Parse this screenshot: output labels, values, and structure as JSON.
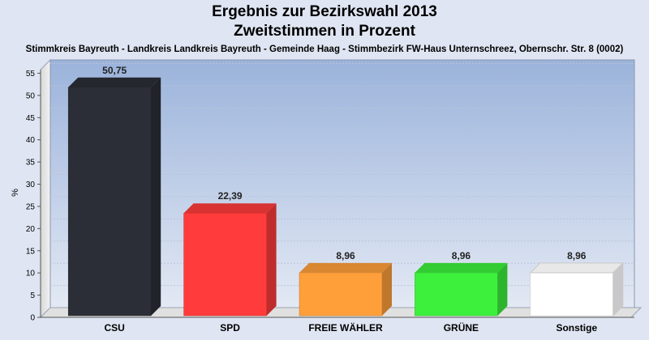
{
  "chart_data": {
    "type": "bar",
    "title": "Ergebnis zur Bezirkswahl 2013",
    "title2": "Zweitstimmen in Prozent",
    "subtitle": "Stimmkreis Bayreuth - Landkreis Landkreis Bayreuth - Gemeinde Haag - Stimmbezirk FW-Haus Unternschreez, Obernschr. Str. 8 (0002)",
    "ylabel": "%",
    "ylim": [
      0,
      58
    ],
    "yticks": [
      0,
      5,
      10,
      15,
      20,
      25,
      30,
      35,
      40,
      45,
      50,
      55
    ],
    "categories": [
      "CSU",
      "SPD",
      "FREIE WÄHLER",
      "GRÜNE",
      "Sonstige"
    ],
    "values": [
      50.75,
      22.39,
      8.96,
      8.96,
      8.96
    ],
    "value_labels": [
      "50,75",
      "22,39",
      "8,96",
      "8,96",
      "8,96"
    ],
    "colors": [
      "#2b2e36",
      "#ff3b3b",
      "#ff9f3a",
      "#3cf03c",
      "#ffffff"
    ],
    "grid": true
  }
}
